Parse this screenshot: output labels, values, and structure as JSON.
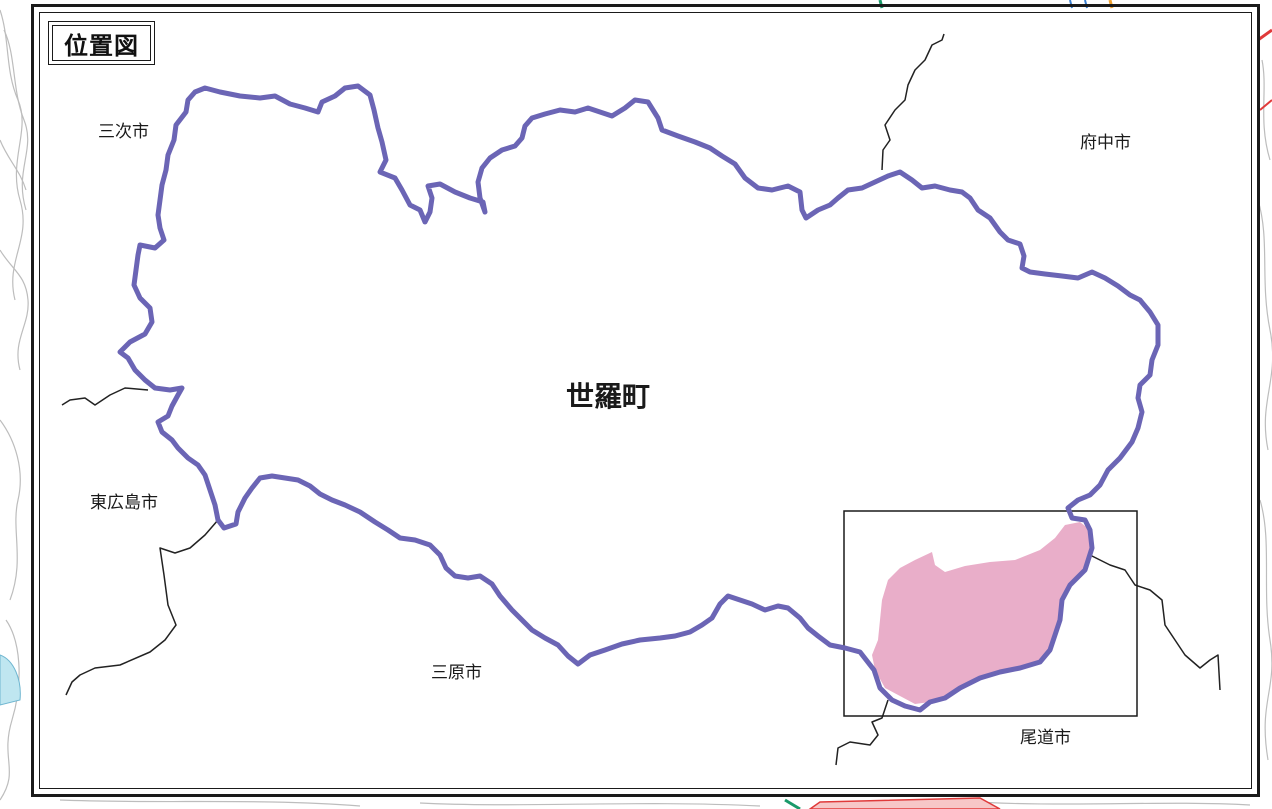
{
  "map": {
    "title": "位置図",
    "main_area": "世羅町",
    "neighbors": {
      "miyoshi": "三次市",
      "fuchu": "府中市",
      "higashihiroshima": "東広島市",
      "mihara": "三原市",
      "onomichi": "尾道市"
    }
  },
  "colors": {
    "boundary": "#6b65b5",
    "highlight_fill": "#e9aec9",
    "frame": "#1a1a1a",
    "muni_line": "#222222",
    "background_contour": "#b9b9b9",
    "road_red": "#e03a3a",
    "road_orange": "#f0a030",
    "water": "#bfe6f0"
  }
}
